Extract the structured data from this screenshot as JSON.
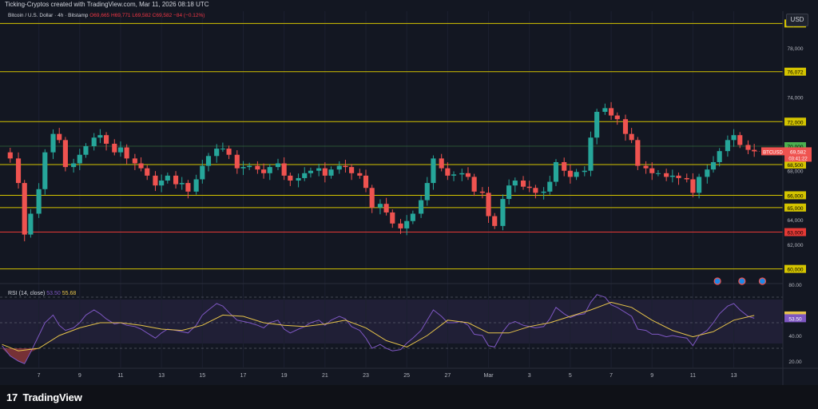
{
  "header": {
    "credit": "Ticking-Cryptos created with TradingView.com, Mar 11, 2026 08:18 UTC"
  },
  "legend": {
    "symbol": "Bitcoin / U.S. Dollar · 4h · Bitstamp",
    "ohlc": "O69,665 H69,771 L69,582 C69,582 −84 (−0.12%)"
  },
  "currency": "USD",
  "rsi_legend": {
    "label": "RSI (14, close)",
    "rsi": "53.50",
    "ma": "55.68"
  },
  "footer": {
    "brand": "TradingView",
    "logo": "17"
  },
  "colors": {
    "up": "#26a69a",
    "down": "#ef5350",
    "level": "#d4c400",
    "red_level": "#e53935",
    "green_level": "#4caf50",
    "rsi": "#7e57c2",
    "rsi_ma": "#e6c34a"
  },
  "chart_data": [
    {
      "type": "candlestick",
      "title": "Bitcoin / U.S. Dollar · 4h · Bitstamp",
      "ylim": [
        59000,
        81000
      ],
      "price_ticks": [
        "62,000",
        "64,000",
        "68,000",
        "74,000",
        "78,000"
      ],
      "x_ticks": [
        "7",
        "9",
        "11",
        "13",
        "15",
        "17",
        "19",
        "21",
        "23",
        "25",
        "27",
        "Mar",
        "3",
        "5",
        "7",
        "9",
        "11",
        "13"
      ],
      "x_tick_days": [
        7,
        9,
        11,
        13,
        15,
        17,
        19,
        21,
        23,
        25,
        27,
        29,
        31,
        33,
        35,
        37,
        39,
        41
      ],
      "x_range_days": [
        5.1,
        43.4
      ],
      "horizontal_levels": [
        {
          "label": "80,000",
          "price": 80000,
          "style": "yellow"
        },
        {
          "label": "76,072",
          "price": 76072,
          "style": "yellow"
        },
        {
          "label": "72,000",
          "price": 72000,
          "style": "yellow"
        },
        {
          "label": "68,500",
          "price": 68500,
          "style": "yellow"
        },
        {
          "label": "66,000",
          "price": 66000,
          "style": "yellow"
        },
        {
          "label": "65,000",
          "price": 65000,
          "style": "yellow"
        },
        {
          "label": "63,000",
          "price": 63000,
          "style": "red"
        },
        {
          "label": "60,000",
          "price": 60000,
          "style": "yellow"
        },
        {
          "label": "70,000",
          "price": 70000,
          "style": "green",
          "label_only": true
        }
      ],
      "last_price": {
        "symbol": "BTCUSD",
        "price": 69582,
        "label": "69,582",
        "countdown": "03:41:22"
      },
      "close_path": [
        [
          5.2,
          69500
        ],
        [
          5.6,
          69000
        ],
        [
          6.0,
          67000
        ],
        [
          6.3,
          62800
        ],
        [
          6.6,
          64500
        ],
        [
          7.0,
          66500
        ],
        [
          7.3,
          69500
        ],
        [
          7.7,
          71000
        ],
        [
          8.0,
          70500
        ],
        [
          8.3,
          68300
        ],
        [
          8.7,
          68600
        ],
        [
          9.0,
          69300
        ],
        [
          9.3,
          70000
        ],
        [
          9.7,
          70700
        ],
        [
          10.0,
          70900
        ],
        [
          10.3,
          70200
        ],
        [
          10.7,
          69500
        ],
        [
          11.0,
          69900
        ],
        [
          11.3,
          69000
        ],
        [
          11.7,
          68600
        ],
        [
          12.0,
          68200
        ],
        [
          12.3,
          67600
        ],
        [
          12.7,
          66800
        ],
        [
          13.0,
          67200
        ],
        [
          13.3,
          67600
        ],
        [
          13.7,
          66900
        ],
        [
          14.0,
          67000
        ],
        [
          14.3,
          66300
        ],
        [
          14.7,
          67300
        ],
        [
          15.0,
          68400
        ],
        [
          15.3,
          69200
        ],
        [
          15.7,
          69800
        ],
        [
          16.0,
          69800
        ],
        [
          16.3,
          69300
        ],
        [
          16.7,
          68200
        ],
        [
          17.0,
          68300
        ],
        [
          17.3,
          68400
        ],
        [
          17.7,
          68100
        ],
        [
          18.0,
          67800
        ],
        [
          18.3,
          68300
        ],
        [
          18.7,
          68600
        ],
        [
          19.0,
          67600
        ],
        [
          19.3,
          67200
        ],
        [
          19.7,
          67400
        ],
        [
          20.0,
          67800
        ],
        [
          20.3,
          68000
        ],
        [
          20.7,
          68200
        ],
        [
          21.0,
          67600
        ],
        [
          21.3,
          68100
        ],
        [
          21.7,
          68400
        ],
        [
          22.0,
          68300
        ],
        [
          22.3,
          67800
        ],
        [
          22.7,
          67600
        ],
        [
          23.0,
          66600
        ],
        [
          23.3,
          65000
        ],
        [
          23.7,
          65300
        ],
        [
          24.0,
          64600
        ],
        [
          24.3,
          63700
        ],
        [
          24.7,
          63300
        ],
        [
          25.0,
          63900
        ],
        [
          25.3,
          64500
        ],
        [
          25.7,
          65600
        ],
        [
          26.0,
          67000
        ],
        [
          26.3,
          69000
        ],
        [
          26.7,
          68200
        ],
        [
          27.0,
          67600
        ],
        [
          27.3,
          67700
        ],
        [
          27.7,
          67800
        ],
        [
          28.0,
          67500
        ],
        [
          28.3,
          66300
        ],
        [
          28.7,
          66200
        ],
        [
          29.0,
          64300
        ],
        [
          29.3,
          63500
        ],
        [
          29.7,
          65700
        ],
        [
          30.0,
          66800
        ],
        [
          30.3,
          67200
        ],
        [
          30.7,
          66700
        ],
        [
          31.0,
          66600
        ],
        [
          31.3,
          66200
        ],
        [
          31.7,
          66300
        ],
        [
          32.0,
          67100
        ],
        [
          32.3,
          68700
        ],
        [
          32.7,
          68000
        ],
        [
          33.0,
          67500
        ],
        [
          33.3,
          67900
        ],
        [
          33.7,
          68000
        ],
        [
          34.0,
          70700
        ],
        [
          34.3,
          72800
        ],
        [
          34.7,
          73100
        ],
        [
          35.0,
          72500
        ],
        [
          35.3,
          72200
        ],
        [
          35.7,
          71000
        ],
        [
          36.0,
          70500
        ],
        [
          36.3,
          68400
        ],
        [
          36.7,
          68200
        ],
        [
          37.0,
          67800
        ],
        [
          37.3,
          67800
        ],
        [
          37.7,
          67500
        ],
        [
          38.0,
          67600
        ],
        [
          38.3,
          67400
        ],
        [
          38.7,
          67300
        ],
        [
          39.0,
          66200
        ],
        [
          39.3,
          67500
        ],
        [
          39.7,
          68100
        ],
        [
          40.0,
          68700
        ],
        [
          40.3,
          69600
        ],
        [
          40.7,
          70500
        ],
        [
          41.0,
          70900
        ],
        [
          41.3,
          70100
        ],
        [
          41.7,
          69700
        ],
        [
          42.0,
          69582
        ]
      ]
    },
    {
      "type": "line",
      "title": "RSI (14, close)",
      "ylim": [
        15,
        80
      ],
      "y_ticks": [
        "80.00",
        "40.00",
        "20.00"
      ],
      "series": [
        {
          "name": "RSI",
          "last": 53.5,
          "last_label": "53.50",
          "values": [
            [
              5.2,
              32
            ],
            [
              5.6,
              24
            ],
            [
              6.0,
              20
            ],
            [
              6.3,
              18
            ],
            [
              6.6,
              27
            ],
            [
              7.0,
              40
            ],
            [
              7.3,
              50
            ],
            [
              7.7,
              56
            ],
            [
              8.0,
              48
            ],
            [
              8.3,
              44
            ],
            [
              8.7,
              46
            ],
            [
              9.0,
              50
            ],
            [
              9.3,
              56
            ],
            [
              9.7,
              60
            ],
            [
              10.0,
              57
            ],
            [
              10.3,
              53
            ],
            [
              10.7,
              49
            ],
            [
              11.0,
              50
            ],
            [
              11.3,
              48
            ],
            [
              11.7,
              47
            ],
            [
              12.0,
              45
            ],
            [
              12.3,
              42
            ],
            [
              12.7,
              38
            ],
            [
              13.0,
              42
            ],
            [
              13.3,
              45
            ],
            [
              13.7,
              44
            ],
            [
              14.0,
              43
            ],
            [
              14.3,
              42
            ],
            [
              14.7,
              48
            ],
            [
              15.0,
              56
            ],
            [
              15.3,
              60
            ],
            [
              15.7,
              65
            ],
            [
              16.0,
              63
            ],
            [
              16.3,
              58
            ],
            [
              16.7,
              52
            ],
            [
              17.0,
              51
            ],
            [
              17.3,
              50
            ],
            [
              17.7,
              48
            ],
            [
              18.0,
              46
            ],
            [
              18.3,
              50
            ],
            [
              18.7,
              52
            ],
            [
              19.0,
              45
            ],
            [
              19.3,
              42
            ],
            [
              19.7,
              45
            ],
            [
              20.0,
              47
            ],
            [
              20.3,
              50
            ],
            [
              20.7,
              52
            ],
            [
              21.0,
              48
            ],
            [
              21.3,
              52
            ],
            [
              21.7,
              55
            ],
            [
              22.0,
              53
            ],
            [
              22.3,
              47
            ],
            [
              22.7,
              44
            ],
            [
              23.0,
              38
            ],
            [
              23.3,
              30
            ],
            [
              23.7,
              33
            ],
            [
              24.0,
              30
            ],
            [
              24.3,
              28
            ],
            [
              24.7,
              29
            ],
            [
              25.0,
              34
            ],
            [
              25.3,
              38
            ],
            [
              25.7,
              44
            ],
            [
              26.0,
              52
            ],
            [
              26.3,
              60
            ],
            [
              26.7,
              55
            ],
            [
              27.0,
              50
            ],
            [
              27.3,
              50
            ],
            [
              27.7,
              51
            ],
            [
              28.0,
              48
            ],
            [
              28.3,
              41
            ],
            [
              28.7,
              40
            ],
            [
              29.0,
              32
            ],
            [
              29.3,
              31
            ],
            [
              29.7,
              43
            ],
            [
              30.0,
              49
            ],
            [
              30.3,
              51
            ],
            [
              30.7,
              48
            ],
            [
              31.0,
              47
            ],
            [
              31.3,
              46
            ],
            [
              31.7,
              47
            ],
            [
              32.0,
              53
            ],
            [
              32.3,
              62
            ],
            [
              32.7,
              57
            ],
            [
              33.0,
              54
            ],
            [
              33.3,
              56
            ],
            [
              33.7,
              57
            ],
            [
              34.0,
              66
            ],
            [
              34.3,
              72
            ],
            [
              34.7,
              70
            ],
            [
              35.0,
              64
            ],
            [
              35.3,
              62
            ],
            [
              35.7,
              58
            ],
            [
              36.0,
              55
            ],
            [
              36.3,
              45
            ],
            [
              36.7,
              44
            ],
            [
              37.0,
              41
            ],
            [
              37.3,
              41
            ],
            [
              37.7,
              39
            ],
            [
              38.0,
              40
            ],
            [
              38.3,
              39
            ],
            [
              38.7,
              38
            ],
            [
              39.0,
              32
            ],
            [
              39.3,
              40
            ],
            [
              39.7,
              44
            ],
            [
              40.0,
              50
            ],
            [
              40.3,
              57
            ],
            [
              40.7,
              63
            ],
            [
              41.0,
              65
            ],
            [
              41.3,
              60
            ],
            [
              41.7,
              55
            ],
            [
              42.0,
              53.5
            ]
          ]
        },
        {
          "name": "RSI-based MA",
          "last": 55.68,
          "last_label": "55.68",
          "values": [
            [
              5.2,
              33
            ],
            [
              6.0,
              28
            ],
            [
              7.0,
              30
            ],
            [
              8.0,
              40
            ],
            [
              9.0,
              46
            ],
            [
              10.0,
              50
            ],
            [
              11.0,
              50
            ],
            [
              12.0,
              48
            ],
            [
              13.0,
              45
            ],
            [
              14.0,
              44
            ],
            [
              15.0,
              48
            ],
            [
              16.0,
              56
            ],
            [
              17.0,
              55
            ],
            [
              18.0,
              50
            ],
            [
              19.0,
              48
            ],
            [
              20.0,
              47
            ],
            [
              21.0,
              49
            ],
            [
              22.0,
              52
            ],
            [
              23.0,
              46
            ],
            [
              24.0,
              36
            ],
            [
              25.0,
              31
            ],
            [
              26.0,
              40
            ],
            [
              27.0,
              52
            ],
            [
              28.0,
              50
            ],
            [
              29.0,
              42
            ],
            [
              30.0,
              42
            ],
            [
              31.0,
              47
            ],
            [
              32.0,
              50
            ],
            [
              33.0,
              55
            ],
            [
              34.0,
              60
            ],
            [
              35.0,
              66
            ],
            [
              36.0,
              62
            ],
            [
              37.0,
              52
            ],
            [
              38.0,
              44
            ],
            [
              39.0,
              39
            ],
            [
              40.0,
              43
            ],
            [
              41.0,
              52
            ],
            [
              42.0,
              55.7
            ]
          ]
        }
      ]
    }
  ]
}
